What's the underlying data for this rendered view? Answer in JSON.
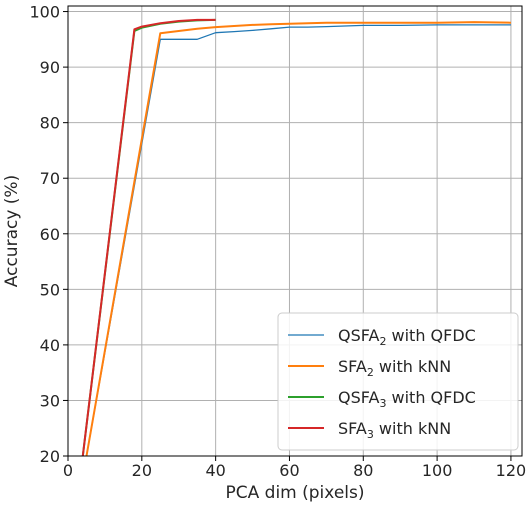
{
  "chart_data": {
    "type": "line",
    "title": "",
    "xlabel": "PCA dim (pixels)",
    "ylabel": "Accuracy (%)",
    "xlim": [
      0,
      123
    ],
    "ylim": [
      20,
      101
    ],
    "xticks": [
      0,
      20,
      40,
      60,
      80,
      100,
      120
    ],
    "yticks": [
      20,
      30,
      40,
      50,
      60,
      70,
      80,
      90,
      100
    ],
    "grid": true,
    "legend_position": "bottom-right",
    "colors": {
      "QSFA2_QFDC": "#1f77b4",
      "SFA2_kNN": "#ff7f0e",
      "QSFA3_QFDC": "#2ca02c",
      "SFA3_kNN": "#d62728"
    },
    "series": [
      {
        "key": "QSFA2_QFDC",
        "name": "QSFA2 with QFDC",
        "x": [
          5,
          25,
          30,
          35,
          40,
          45,
          50,
          55,
          60,
          65,
          70,
          75,
          80,
          90,
          100,
          110,
          120
        ],
        "y": [
          20,
          95,
          95,
          95,
          96.2,
          96.4,
          96.6,
          96.9,
          97.2,
          97.2,
          97.3,
          97.4,
          97.5,
          97.5,
          97.6,
          97.6,
          97.6
        ]
      },
      {
        "key": "SFA2_kNN",
        "name": "SFA2 with kNN",
        "x": [
          5,
          25,
          30,
          35,
          40,
          45,
          50,
          55,
          60,
          65,
          70,
          75,
          80,
          90,
          100,
          110,
          120
        ],
        "y": [
          20,
          96.1,
          96.5,
          96.9,
          97.2,
          97.4,
          97.6,
          97.7,
          97.8,
          97.9,
          98.0,
          98.0,
          98.0,
          98.0,
          98.0,
          98.1,
          98.0
        ]
      },
      {
        "key": "QSFA3_QFDC",
        "name": "QSFA3 with QFDC",
        "x": [
          4,
          18,
          20,
          25,
          30,
          35,
          40
        ],
        "y": [
          20,
          96.5,
          97.1,
          97.8,
          98.2,
          98.4,
          98.5
        ]
      },
      {
        "key": "SFA3_kNN",
        "name": "SFA3 with kNN",
        "x": [
          4,
          18,
          20,
          25,
          30,
          35,
          40
        ],
        "y": [
          20,
          96.8,
          97.3,
          97.9,
          98.3,
          98.5,
          98.5
        ]
      }
    ],
    "legend": [
      {
        "key": "QSFA2_QFDC",
        "pre": "QSFA",
        "sub": "2",
        "post": " with QFDC"
      },
      {
        "key": "SFA2_kNN",
        "pre": "SFA",
        "sub": "2",
        "post": " with kNN"
      },
      {
        "key": "QSFA3_QFDC",
        "pre": "QSFA",
        "sub": "3",
        "post": " with QFDC"
      },
      {
        "key": "SFA3_kNN",
        "pre": "SFA",
        "sub": "3",
        "post": " with kNN"
      }
    ]
  }
}
